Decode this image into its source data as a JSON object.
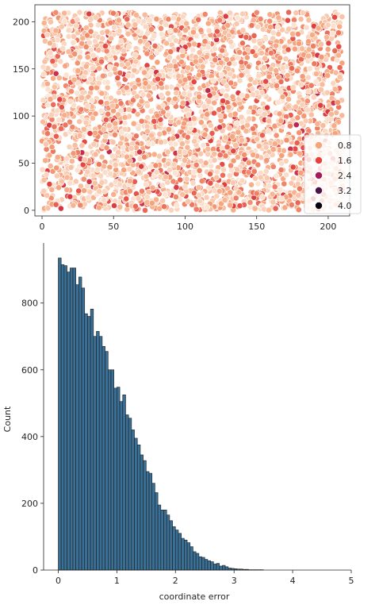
{
  "chart_data": [
    {
      "type": "scatter",
      "title": "",
      "xlabel": "",
      "ylabel": "",
      "xlim": [
        -5,
        215
      ],
      "ylim": [
        -6,
        218
      ],
      "xticks": [
        "0",
        "50",
        "100",
        "150",
        "200"
      ],
      "yticks": [
        "0",
        "50",
        "100",
        "150",
        "200"
      ],
      "grid": false,
      "legend": {
        "placement": "lower-right",
        "entries": [
          {
            "label": "0.8",
            "color": "#f6a47c"
          },
          {
            "label": "1.6",
            "color": "#e2433f"
          },
          {
            "label": "2.4",
            "color": "#a6195a"
          },
          {
            "label": "3.2",
            "color": "#4b1449"
          },
          {
            "label": "4.0",
            "color": "#04030f"
          }
        ]
      },
      "x_range_of_points": [
        0,
        210
      ],
      "y_range_of_points": [
        0,
        210
      ],
      "point_count": 3300,
      "color_scale": {
        "min": 0.0,
        "max": 4.0,
        "low_color": "#fbe6d6",
        "high_color": "#04030f"
      }
    },
    {
      "type": "bar",
      "subtype": "histogram",
      "title": "",
      "xlabel": "coordinate error",
      "ylabel": "Count",
      "xlim": [
        -0.25,
        5.0
      ],
      "ylim": [
        0,
        980
      ],
      "xticks": [
        "0",
        "1",
        "2",
        "3",
        "4",
        "5"
      ],
      "yticks": [
        "0",
        "200",
        "400",
        "600",
        "800"
      ],
      "bin_width": 0.05,
      "bin_start": 0.0,
      "bar_color": "#3a6f96",
      "edge_color": "#1c1c1c",
      "values": [
        935,
        915,
        912,
        893,
        905,
        905,
        855,
        878,
        845,
        768,
        760,
        782,
        700,
        715,
        700,
        670,
        655,
        600,
        600,
        545,
        548,
        505,
        525,
        465,
        455,
        420,
        395,
        375,
        345,
        328,
        295,
        290,
        260,
        232,
        195,
        180,
        180,
        165,
        148,
        130,
        120,
        110,
        95,
        90,
        82,
        70,
        55,
        50,
        40,
        38,
        32,
        28,
        25,
        18,
        20,
        12,
        14,
        10,
        6,
        5,
        4,
        3,
        3,
        2,
        2,
        1,
        1,
        1,
        1,
        1,
        0,
        0,
        0,
        0,
        0,
        0
      ]
    }
  ]
}
